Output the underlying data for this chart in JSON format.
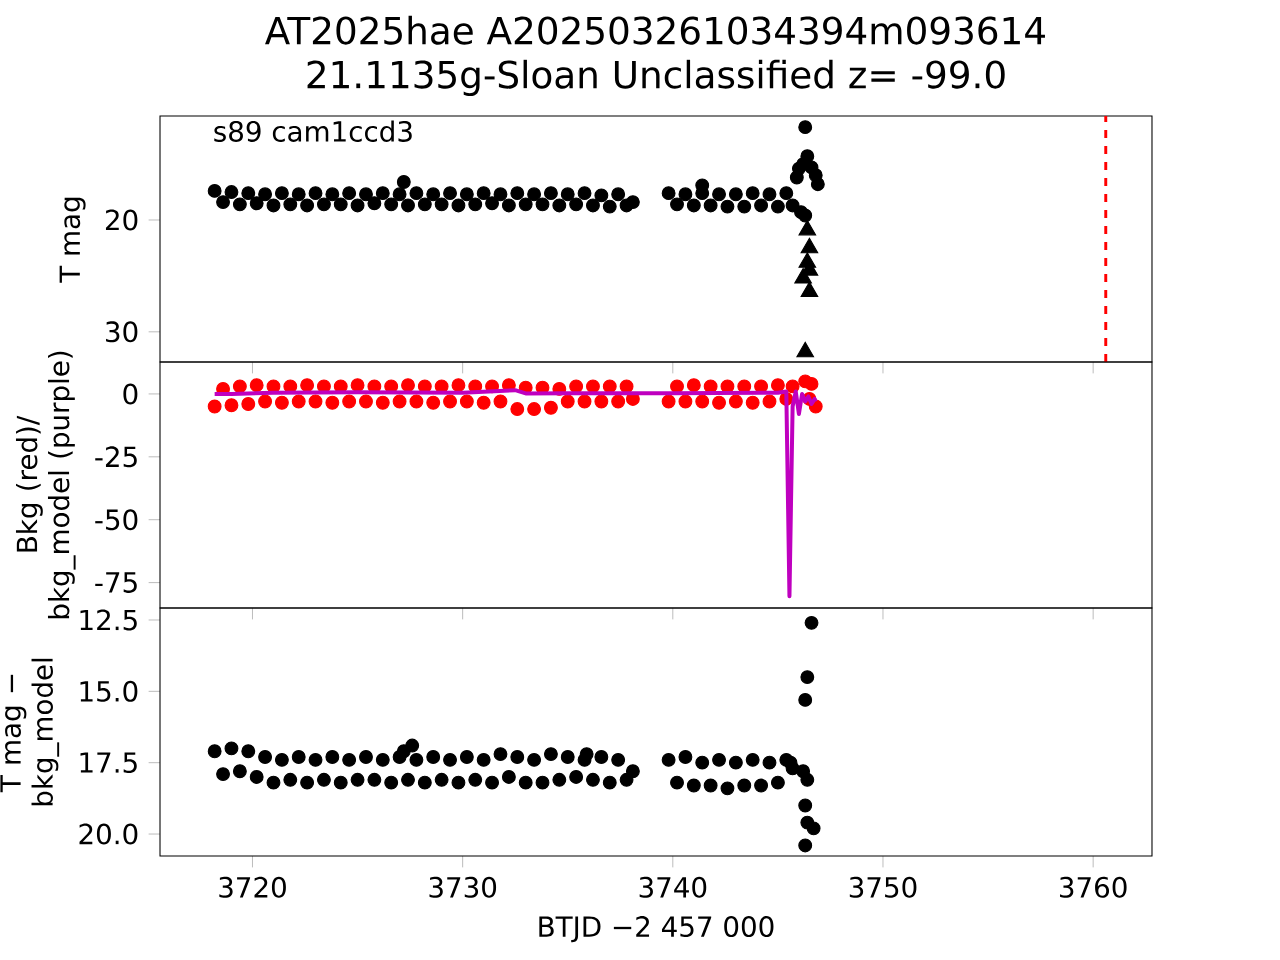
{
  "chart_data": [
    {
      "type": "scatter",
      "title": "AT2025hae  A202503261034394m093614",
      "subtitle": "21.1135g-Sloan Unclassified z= -99.0",
      "ylabel": "T mag",
      "annotations": [
        "s89 cam1ccd3"
      ],
      "xlim": [
        3715.6,
        3762.8
      ],
      "ylim": [
        32.7,
        10.7
      ],
      "xticks": [
        3720,
        3730,
        3740,
        3750,
        3760
      ],
      "yticks": [
        20,
        30
      ],
      "tick_labels": "y",
      "ref_lines": [
        {
          "axis": "x",
          "value": 3760.6,
          "color": "#ff0000",
          "line_style": "dashed"
        }
      ],
      "series": [
        {
          "color": "#000000",
          "marker": "circle",
          "x": [
            3718.2,
            3718.6,
            3719.0,
            3719.4,
            3719.8,
            3720.2,
            3720.6,
            3721.0,
            3721.4,
            3721.8,
            3722.2,
            3722.6,
            3723.0,
            3723.4,
            3723.8,
            3724.2,
            3724.6,
            3725.0,
            3725.4,
            3725.8,
            3726.2,
            3726.6,
            3727.0,
            3727.4,
            3727.8,
            3728.2,
            3728.6,
            3729.0,
            3729.4,
            3729.8,
            3730.2,
            3730.6,
            3731.0,
            3731.4,
            3731.8,
            3732.2,
            3732.6,
            3733.0,
            3733.4,
            3733.8,
            3734.2,
            3734.6,
            3735.0,
            3735.4,
            3735.8,
            3736.2,
            3736.6,
            3737.0,
            3737.4,
            3737.8,
            3738.1,
            3739.8,
            3740.2,
            3740.6,
            3741.0,
            3741.4,
            3741.8,
            3742.2,
            3742.6,
            3743.0,
            3743.4,
            3743.8,
            3744.2,
            3744.6,
            3745.0,
            3745.4,
            3745.7,
            3727.2,
            3741.4,
            3745.9,
            3746.0,
            3746.2,
            3746.4,
            3746.3,
            3746.6,
            3746.8,
            3746.9,
            3746.1,
            3746.3
          ],
          "values": [
            17.4,
            18.4,
            17.5,
            18.6,
            17.6,
            18.5,
            17.7,
            18.7,
            17.6,
            18.6,
            17.7,
            18.7,
            17.6,
            18.6,
            17.7,
            18.6,
            17.6,
            18.7,
            17.7,
            18.5,
            17.6,
            18.6,
            17.7,
            18.7,
            17.6,
            18.6,
            17.7,
            18.6,
            17.6,
            18.7,
            17.7,
            18.6,
            17.6,
            18.5,
            17.7,
            18.7,
            17.6,
            18.6,
            17.7,
            18.6,
            17.6,
            18.7,
            17.7,
            18.6,
            17.6,
            18.7,
            17.8,
            18.8,
            17.7,
            18.7,
            18.4,
            17.6,
            18.6,
            17.7,
            18.7,
            17.6,
            18.7,
            17.7,
            18.8,
            17.7,
            18.8,
            17.6,
            18.7,
            17.7,
            18.8,
            17.6,
            18.7,
            16.6,
            16.9,
            16.2,
            15.4,
            15.0,
            14.3,
            11.7,
            15.3,
            16.0,
            16.8,
            19.3,
            19.6
          ]
        },
        {
          "color": "#000000",
          "marker": "triangle",
          "x": [
            3746.4,
            3746.4,
            3746.5,
            3746.2,
            3746.5,
            3746.3,
            3746.5
          ],
          "values": [
            20.9,
            23.8,
            24.5,
            25.2,
            26.4,
            31.8,
            22.5
          ]
        }
      ]
    },
    {
      "type": "scatter",
      "ylabel": "Bkg (red)/ bkg_model (purple)",
      "xlim": [
        3715.6,
        3762.8
      ],
      "ylim": [
        -85.1,
        12.7
      ],
      "xticks": [
        3720,
        3730,
        3740,
        3750,
        3760
      ],
      "yticks": [
        0,
        -25,
        -50,
        -75
      ],
      "tick_labels": "y",
      "series": [
        {
          "color": "#ff0000",
          "marker": "circle",
          "x": [
            3718.2,
            3718.6,
            3719.0,
            3719.4,
            3719.8,
            3720.2,
            3720.6,
            3721.0,
            3721.4,
            3721.8,
            3722.2,
            3722.6,
            3723.0,
            3723.4,
            3723.8,
            3724.2,
            3724.6,
            3725.0,
            3725.4,
            3725.8,
            3726.2,
            3726.6,
            3727.0,
            3727.4,
            3727.8,
            3728.2,
            3728.6,
            3729.0,
            3729.4,
            3729.8,
            3730.2,
            3730.6,
            3731.0,
            3731.4,
            3731.8,
            3732.2,
            3732.6,
            3733.0,
            3733.4,
            3733.8,
            3734.2,
            3734.6,
            3735.0,
            3735.4,
            3735.8,
            3736.2,
            3736.6,
            3737.0,
            3737.4,
            3737.8,
            3738.1,
            3739.8,
            3740.2,
            3740.6,
            3741.0,
            3741.4,
            3741.8,
            3742.2,
            3742.6,
            3743.0,
            3743.4,
            3743.8,
            3744.2,
            3744.6,
            3745.0,
            3745.4,
            3745.7,
            3746.3,
            3746.6,
            3746.8,
            3746.5
          ],
          "values": [
            -5,
            2,
            -4.5,
            3,
            -4,
            3.5,
            -3,
            3,
            -3.5,
            3,
            -3,
            3.5,
            -3,
            3,
            -3.5,
            3,
            -3,
            3.5,
            -3,
            3,
            -3.5,
            3,
            -3,
            3.5,
            -3,
            3,
            -3.5,
            3,
            -3,
            3.5,
            -3,
            3,
            -3.5,
            3,
            -3,
            3.5,
            -6,
            2.5,
            -6,
            2.5,
            -5.5,
            2,
            -3,
            3,
            -3,
            3,
            -3,
            3,
            -3,
            3,
            -2,
            -3,
            3,
            -3,
            3.5,
            -3,
            3,
            -3.5,
            3,
            -3,
            3,
            -3.5,
            3,
            -3,
            3.5,
            -2,
            3,
            5,
            4,
            -5,
            -2
          ]
        },
        {
          "type": "line",
          "color": "#bf00bf",
          "marker": "none",
          "x": [
            3718.2,
            3719.0,
            3721.0,
            3725.0,
            3730.0,
            3732.5,
            3733.0,
            3735.0,
            3738.2,
            3739.8,
            3745.0,
            3745.4,
            3745.55,
            3745.7,
            3745.85,
            3746.0,
            3746.15,
            3746.3,
            3746.45,
            3746.6,
            3746.75,
            3746.8
          ],
          "values": [
            0,
            0,
            0.5,
            0.7,
            0.5,
            1.5,
            0.2,
            0.3,
            0.3,
            0.3,
            0.5,
            1.0,
            -80.4,
            -5,
            1,
            -8,
            0,
            -3,
            -1,
            -4,
            -2,
            -3
          ]
        }
      ]
    },
    {
      "type": "scatter",
      "xlabel": "BTJD −2 457 000",
      "ylabel": "T mag − bkg_model",
      "xlim": [
        3715.6,
        3762.8
      ],
      "ylim": [
        20.77,
        12.08
      ],
      "xticks": [
        3720,
        3730,
        3740,
        3750,
        3760
      ],
      "yticks": [
        12.5,
        {
          "value": 15,
          "label": "15.0"
        },
        17.5,
        {
          "value": 20,
          "label": "20.0"
        }
      ],
      "series": [
        {
          "color": "#000000",
          "marker": "circle",
          "x": [
            3718.2,
            3718.6,
            3719.0,
            3719.4,
            3719.8,
            3720.2,
            3720.6,
            3721.0,
            3721.4,
            3721.8,
            3722.2,
            3722.6,
            3723.0,
            3723.4,
            3723.8,
            3724.2,
            3724.6,
            3725.0,
            3725.4,
            3725.8,
            3726.2,
            3726.6,
            3727.0,
            3727.4,
            3727.8,
            3728.2,
            3728.6,
            3729.0,
            3729.4,
            3729.8,
            3730.2,
            3730.6,
            3731.0,
            3731.4,
            3731.8,
            3732.2,
            3732.6,
            3733.0,
            3733.4,
            3733.8,
            3734.2,
            3734.6,
            3735.0,
            3735.4,
            3735.8,
            3736.2,
            3736.6,
            3737.0,
            3737.4,
            3737.8,
            3738.1,
            3739.8,
            3740.2,
            3740.6,
            3741.0,
            3741.4,
            3741.8,
            3742.2,
            3742.6,
            3743.0,
            3743.4,
            3743.8,
            3744.2,
            3744.6,
            3745.0,
            3745.4,
            3745.7,
            3727.2,
            3727.6,
            3735.9,
            3745.6,
            3746.2,
            3746.4,
            3746.3,
            3746.4,
            3746.7,
            3746.3,
            3746.4,
            3746.3,
            3746.6
          ],
          "values": [
            17.1,
            17.9,
            17.0,
            17.8,
            17.1,
            18.0,
            17.3,
            18.2,
            17.4,
            18.1,
            17.3,
            18.2,
            17.4,
            18.1,
            17.3,
            18.2,
            17.4,
            18.1,
            17.3,
            18.1,
            17.4,
            18.2,
            17.3,
            18.1,
            17.4,
            18.2,
            17.3,
            18.1,
            17.4,
            18.2,
            17.3,
            18.1,
            17.4,
            18.2,
            17.2,
            18.0,
            17.3,
            18.2,
            17.4,
            18.2,
            17.2,
            18.1,
            17.3,
            18.0,
            17.4,
            18.1,
            17.3,
            18.2,
            17.4,
            18.1,
            17.8,
            17.4,
            18.2,
            17.3,
            18.3,
            17.5,
            18.3,
            17.4,
            18.4,
            17.5,
            18.3,
            17.4,
            18.3,
            17.5,
            18.2,
            17.4,
            17.7,
            17.1,
            16.9,
            17.2,
            17.5,
            17.8,
            18.1,
            19.0,
            19.6,
            19.8,
            20.4,
            14.5,
            15.3,
            12.6
          ]
        }
      ]
    }
  ]
}
